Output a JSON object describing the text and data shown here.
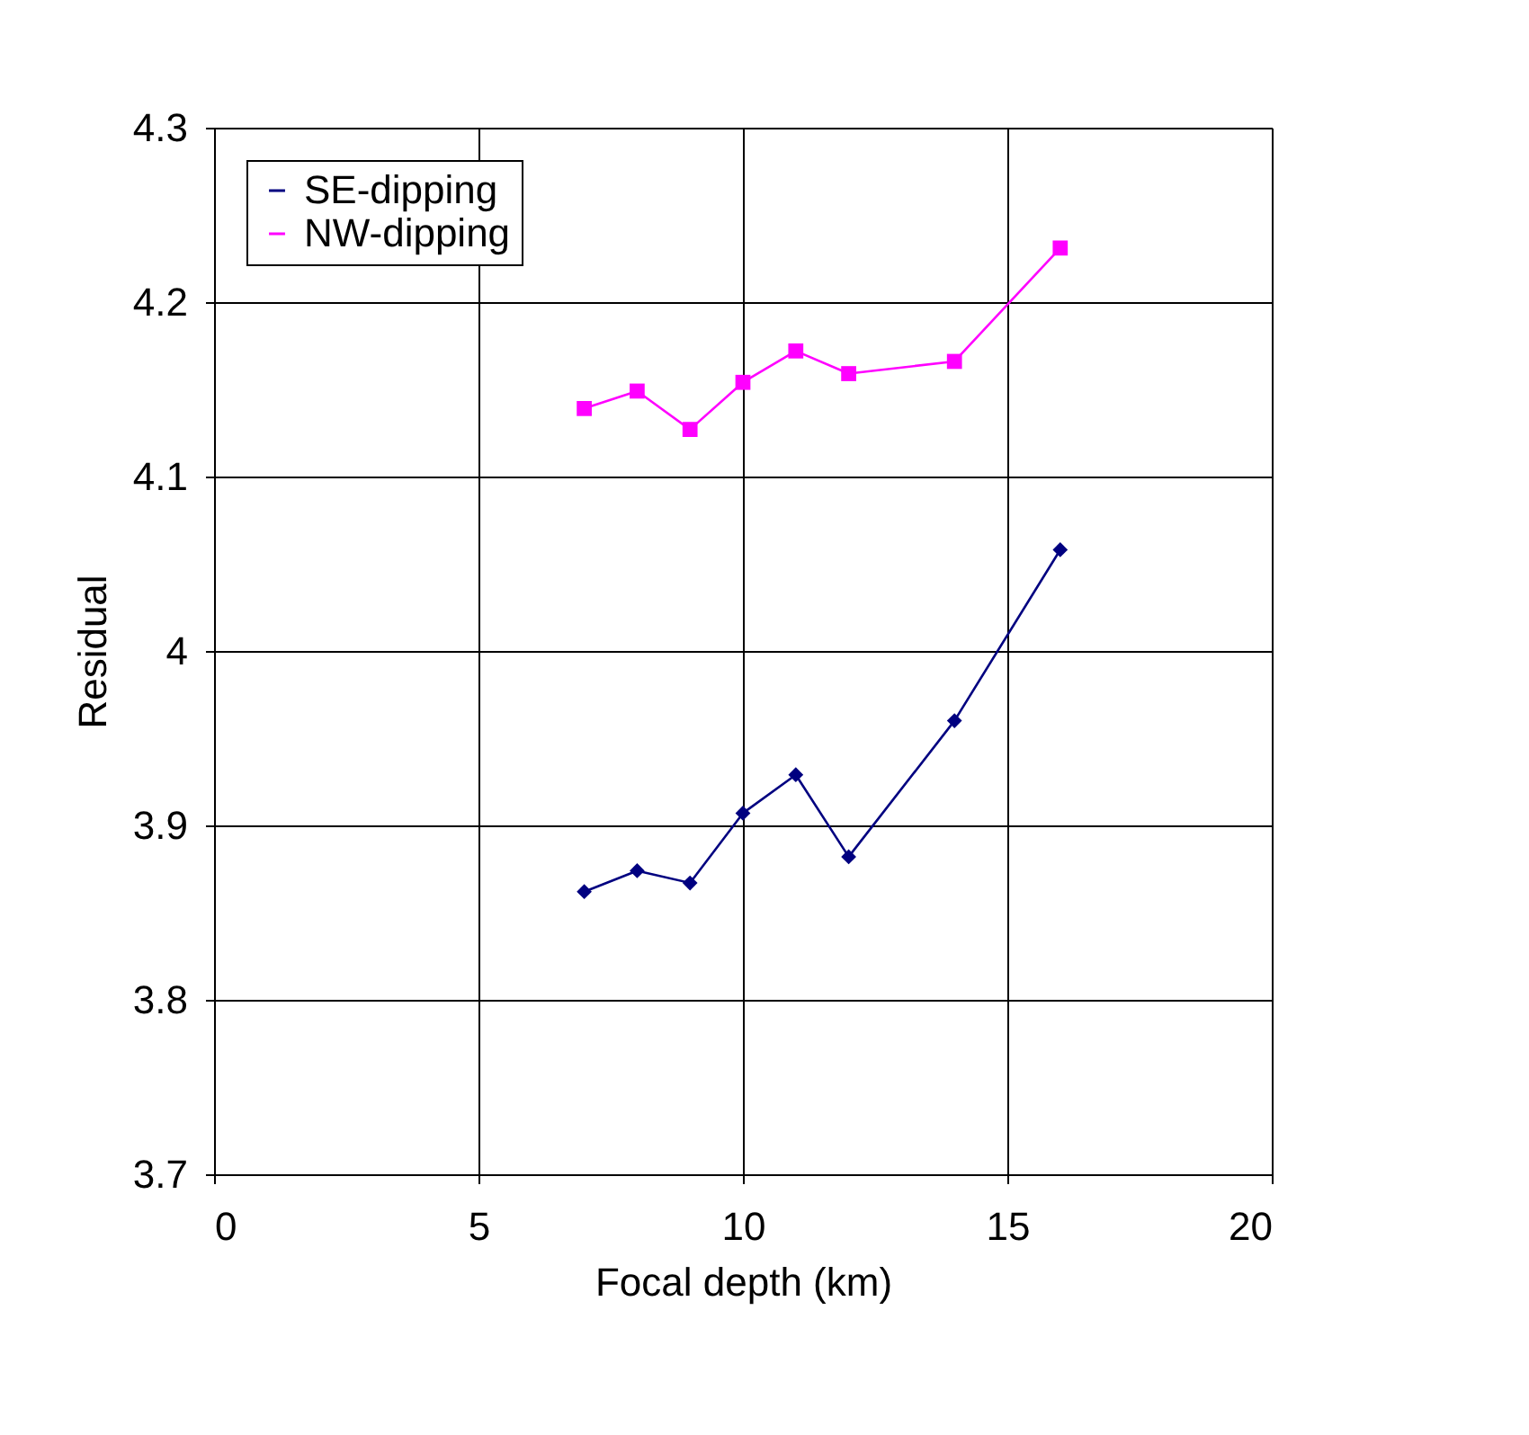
{
  "chart_data": {
    "type": "line",
    "xlabel": "Focal depth   (km)",
    "ylabel": "Residual",
    "xlim": [
      0,
      20
    ],
    "xticks": [
      0,
      5,
      10,
      15,
      20
    ],
    "ylim": [
      3.7,
      4.3
    ],
    "yticks": [
      3.7,
      3.8,
      3.9,
      4,
      4.1,
      4.2,
      4.3
    ],
    "x": [
      7,
      8,
      9,
      10,
      11,
      12,
      14,
      16
    ],
    "series": [
      {
        "name": "SE-dipping",
        "color": "#000080",
        "marker": "diamond",
        "values": [
          3.862,
          3.874,
          3.867,
          3.907,
          3.929,
          3.882,
          3.96,
          4.058
        ]
      },
      {
        "name": "NW-dipping",
        "color": "#ff00ff",
        "marker": "square",
        "values": [
          4.139,
          4.149,
          4.127,
          4.154,
          4.172,
          4.159,
          4.166,
          4.231
        ]
      }
    ],
    "grid": true,
    "legend": "top left",
    "line_style": "solid"
  }
}
